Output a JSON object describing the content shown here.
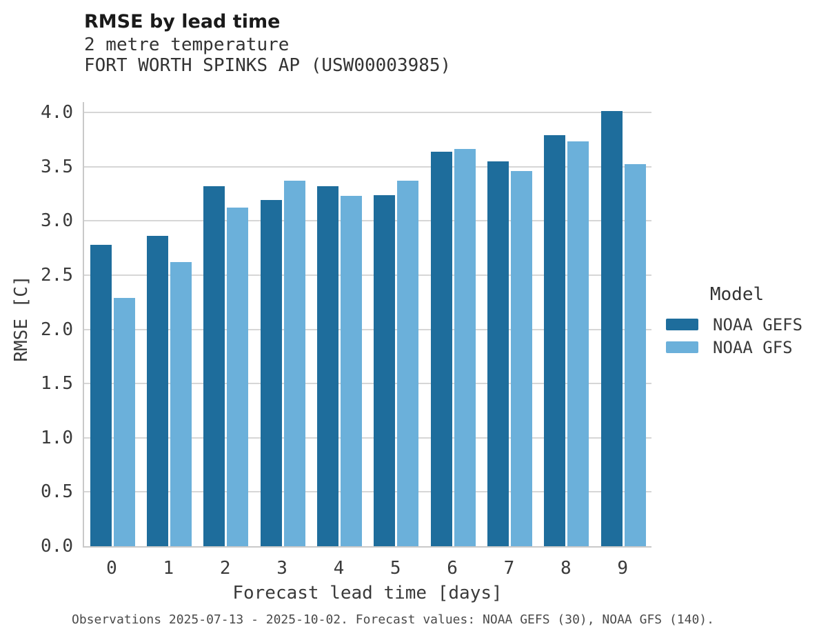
{
  "header": {
    "title": "RMSE by lead time",
    "subtitle_line1": "2 metre temperature",
    "subtitle_line2": "FORT WORTH SPINKS AP (USW00003985)"
  },
  "legend": {
    "title": "Model",
    "items": [
      {
        "label": "NOAA GEFS",
        "color": "#1e6d9c"
      },
      {
        "label": "NOAA GFS",
        "color": "#6bb0da"
      }
    ]
  },
  "footer": {
    "text": "Observations 2025-07-13 - 2025-10-02. Forecast values: NOAA GEFS (30), NOAA GFS (140)."
  },
  "colors": {
    "gefs_bar": "#1e6d9c",
    "gfs_bar": "#6bb0da",
    "gridline": "#d6d6d6",
    "axis_spine": "#c9c9c9",
    "title_text": "#1a1a1a",
    "body_text": "#3a3a3a",
    "background": "#ffffff"
  },
  "chart_data": {
    "type": "bar",
    "title": "RMSE by lead time",
    "subtitle": [
      "2 metre temperature",
      "FORT WORTH SPINKS AP (USW00003985)"
    ],
    "categories": [
      0,
      1,
      2,
      3,
      4,
      5,
      6,
      7,
      8,
      9
    ],
    "xtick_labels": [
      "0",
      "1",
      "2",
      "3",
      "4",
      "5",
      "6",
      "7",
      "8",
      "9"
    ],
    "series": [
      {
        "name": "NOAA GEFS",
        "color": "#1e6d9c",
        "values": [
          2.78,
          2.86,
          3.32,
          3.19,
          3.32,
          3.24,
          3.64,
          3.55,
          3.79,
          4.01
        ]
      },
      {
        "name": "NOAA GFS",
        "color": "#6bb0da",
        "values": [
          2.29,
          2.62,
          3.12,
          3.37,
          3.23,
          3.37,
          3.66,
          3.46,
          3.73,
          3.52
        ]
      }
    ],
    "xlabel": "Forecast lead time [days]",
    "ylabel": "RMSE [C]",
    "ylim": [
      0.0,
      4.0
    ],
    "ytick_step": 0.5,
    "ytick_labels": [
      "0.0",
      "0.5",
      "1.0",
      "1.5",
      "2.0",
      "2.5",
      "3.0",
      "3.5",
      "4.0"
    ],
    "grid": true,
    "legend_title": "Model",
    "legend_position": "right",
    "caption": "Observations 2025-07-13 - 2025-10-02. Forecast values: NOAA GEFS (30), NOAA GFS (140)."
  }
}
